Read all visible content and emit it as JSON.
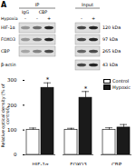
{
  "panel_label": "A",
  "blot": {
    "groups": [
      {
        "label": "IP",
        "lanes": [
          "IgG",
          "CBP"
        ],
        "lane_counts": [
          1,
          2
        ]
      },
      {
        "label": "Input",
        "lane_counts": [
          2
        ]
      }
    ],
    "condition": "Hypoxia",
    "signs": [
      "-",
      "-",
      "+",
      "-",
      "+"
    ],
    "rows": [
      {
        "label": "HIF-1α",
        "size": "120 kDa",
        "input_only": false
      },
      {
        "label": "FOXO3",
        "size": "97 kDa",
        "input_only": false
      },
      {
        "label": "CBP",
        "size": "265 kDa",
        "input_only": false
      },
      {
        "label": "β-actin",
        "size": "43 kDa",
        "input_only": true
      }
    ]
  },
  "chart_data": {
    "type": "bar",
    "categories": [
      "HIF-1α",
      "FOXO3",
      "CBP"
    ],
    "series": [
      {
        "name": "Control",
        "color": "#ffffff",
        "values": [
          100,
          100,
          100
        ],
        "errors": [
          8,
          7,
          9
        ]
      },
      {
        "name": "Hypoxic",
        "color": "#1a1a1a",
        "values": [
          270,
          230,
          110
        ],
        "errors": [
          20,
          25,
          12
        ]
      }
    ],
    "y_label": "Relative optical density (% of control)",
    "ylim": [
      0,
      300
    ],
    "yticks": [
      0,
      100,
      200,
      300
    ],
    "legend": "top-right",
    "annotations": [
      {
        "text": "*",
        "category": "HIF-1α",
        "series": "Hypoxic"
      },
      {
        "text": "*",
        "category": "FOXO3",
        "series": "Hypoxic"
      }
    ]
  }
}
